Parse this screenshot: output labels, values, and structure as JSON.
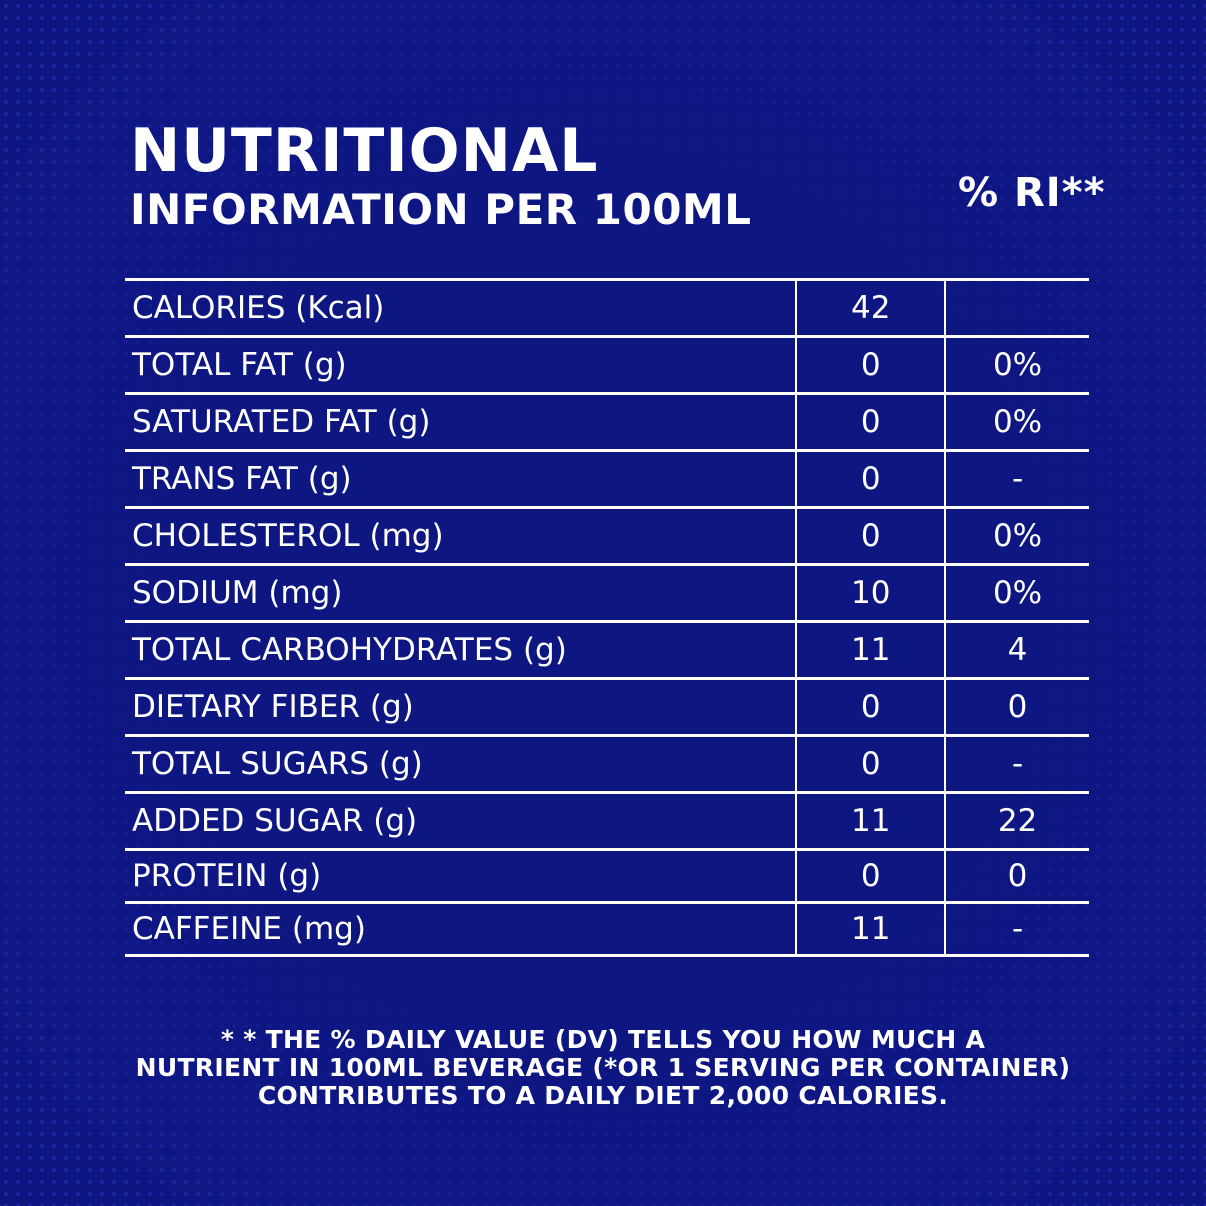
{
  "header": {
    "title_line1": "NUTRITIONAL",
    "title_line2": "INFORMATION PER 100ML",
    "ri_column_header": "% RI**"
  },
  "table": {
    "rows": [
      {
        "label": "CALORIES (Kcal)",
        "amount": "42",
        "ri": ""
      },
      {
        "label": "TOTAL FAT (g)",
        "amount": "0",
        "ri": "0%"
      },
      {
        "label": "SATURATED FAT (g)",
        "amount": "0",
        "ri": "0%"
      },
      {
        "label": "TRANS FAT (g)",
        "amount": "0",
        "ri": "-"
      },
      {
        "label": "CHOLESTEROL  (mg)",
        "amount": "0",
        "ri": "0%"
      },
      {
        "label": "SODIUM (mg)",
        "amount": "10",
        "ri": "0%"
      },
      {
        "label": "TOTAL CARBOHYDRATES (g)",
        "amount": "11",
        "ri": "4"
      },
      {
        "label": "DIETARY FIBER (g)",
        "amount": "0",
        "ri": "0"
      },
      {
        "label": "TOTAL SUGARS (g)",
        "amount": "0",
        "ri": "-"
      },
      {
        "label": "ADDED SUGAR (g)",
        "amount": "11",
        "ri": "22"
      },
      {
        "label": "PROTEIN (g)",
        "amount": "0",
        "ri": "0"
      },
      {
        "label": "CAFFEINE (mg)",
        "amount": "11",
        "ri": "-"
      }
    ]
  },
  "footnote": {
    "line1": "* * THE % DAILY VALUE (DV) TELLS YOU HOW MUCH A",
    "line2": "NUTRIENT IN 100ML BEVERAGE (*OR 1 SERVING PER CONTAINER)",
    "line3": "CONTRIBUTES TO A DAILY DIET 2,000 CALORIES."
  },
  "colors": {
    "background": "#0e1682",
    "dot_pattern": "#3750f0",
    "text": "#ffffff"
  }
}
